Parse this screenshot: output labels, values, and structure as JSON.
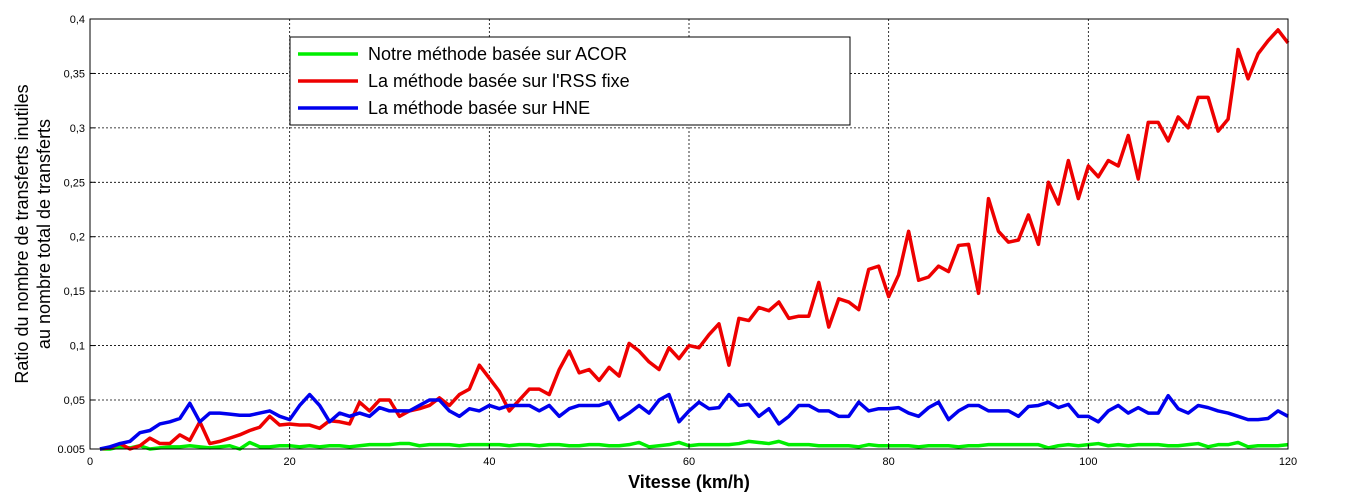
{
  "chart_data": {
    "type": "line",
    "x_label": "Vitesse (km/h)",
    "y_label": [
      "Ratio du nombre de transferts inutiles",
      "au nombre total de transferts"
    ],
    "xlim": [
      0,
      120
    ],
    "xticks": [
      0,
      20,
      40,
      60,
      80,
      100,
      120
    ],
    "ylim": [
      0.005,
      0.4
    ],
    "yticks": [
      0.005,
      {
        "value": 0.05,
        "label": "0,05"
      },
      {
        "value": 0.1,
        "label": "0,1"
      },
      {
        "value": 0.15,
        "label": "0,15"
      },
      {
        "value": 0.2,
        "label": "0,2"
      },
      {
        "value": 0.25,
        "label": "0,25"
      },
      {
        "value": 0.3,
        "label": "0,3"
      },
      {
        "value": 0.35,
        "label": "0,35"
      },
      {
        "value": 0.4,
        "label": "0,4"
      }
    ],
    "grid": true,
    "legend": "upper-left",
    "x": [
      1,
      2,
      3,
      4,
      5,
      6,
      7,
      8,
      9,
      10,
      11,
      12,
      13,
      14,
      15,
      16,
      17,
      18,
      19,
      20,
      21,
      22,
      23,
      24,
      25,
      26,
      27,
      28,
      29,
      30,
      31,
      32,
      33,
      34,
      35,
      36,
      37,
      38,
      39,
      40,
      41,
      42,
      43,
      44,
      45,
      46,
      47,
      48,
      49,
      50,
      51,
      52,
      53,
      54,
      55,
      56,
      57,
      58,
      59,
      60,
      61,
      62,
      63,
      64,
      65,
      66,
      67,
      68,
      69,
      70,
      71,
      72,
      73,
      74,
      75,
      76,
      77,
      78,
      79,
      80,
      81,
      82,
      83,
      84,
      85,
      86,
      87,
      88,
      89,
      90,
      91,
      92,
      93,
      94,
      95,
      96,
      97,
      98,
      99,
      100,
      101,
      102,
      103,
      104,
      105,
      106,
      107,
      108,
      109,
      110,
      111,
      112,
      113,
      114,
      115,
      116,
      117,
      118,
      119,
      120
    ],
    "series": [
      {
        "name": "Notre méthode basée sur ACOR",
        "color": "#00ee00",
        "values": [
          0.005,
          0.005,
          0.007,
          0.006,
          0.008,
          0.005,
          0.006,
          0.007,
          0.007,
          0.008,
          0.007,
          0.006,
          0.007,
          0.008,
          0.005,
          0.011,
          0.007,
          0.007,
          0.008,
          0.008,
          0.007,
          0.008,
          0.007,
          0.008,
          0.008,
          0.007,
          0.008,
          0.009,
          0.009,
          0.009,
          0.01,
          0.01,
          0.008,
          0.009,
          0.009,
          0.009,
          0.008,
          0.009,
          0.009,
          0.009,
          0.009,
          0.008,
          0.009,
          0.009,
          0.008,
          0.009,
          0.009,
          0.008,
          0.008,
          0.009,
          0.009,
          0.008,
          0.008,
          0.009,
          0.011,
          0.007,
          0.008,
          0.009,
          0.011,
          0.008,
          0.009,
          0.009,
          0.009,
          0.009,
          0.01,
          0.012,
          0.011,
          0.01,
          0.012,
          0.009,
          0.009,
          0.009,
          0.008,
          0.008,
          0.008,
          0.008,
          0.007,
          0.009,
          0.008,
          0.008,
          0.008,
          0.008,
          0.007,
          0.008,
          0.008,
          0.008,
          0.007,
          0.008,
          0.008,
          0.009,
          0.009,
          0.009,
          0.009,
          0.009,
          0.009,
          0.006,
          0.008,
          0.009,
          0.008,
          0.009,
          0.01,
          0.008,
          0.009,
          0.008,
          0.009,
          0.009,
          0.009,
          0.008,
          0.008,
          0.009,
          0.01,
          0.007,
          0.009,
          0.009,
          0.011,
          0.007,
          0.008,
          0.008,
          0.008,
          0.009
        ]
      },
      {
        "name": "La méthode basée sur l'RSS fixe",
        "color": "#ee0000",
        "values": [
          0.005,
          0.006,
          0.01,
          0.005,
          0.008,
          0.015,
          0.01,
          0.01,
          0.018,
          0.013,
          0.03,
          0.01,
          0.012,
          0.015,
          0.018,
          0.022,
          0.025,
          0.035,
          0.027,
          0.028,
          0.027,
          0.027,
          0.024,
          0.031,
          0.03,
          0.028,
          0.048,
          0.04,
          0.05,
          0.05,
          0.035,
          0.04,
          0.042,
          0.045,
          0.052,
          0.045,
          0.055,
          0.06,
          0.082,
          0.07,
          0.058,
          0.04,
          0.05,
          0.06,
          0.06,
          0.055,
          0.078,
          0.095,
          0.075,
          0.078,
          0.068,
          0.08,
          0.072,
          0.102,
          0.095,
          0.085,
          0.078,
          0.098,
          0.088,
          0.1,
          0.098,
          0.11,
          0.12,
          0.082,
          0.125,
          0.123,
          0.135,
          0.132,
          0.14,
          0.125,
          0.127,
          0.127,
          0.158,
          0.117,
          0.143,
          0.14,
          0.133,
          0.17,
          0.173,
          0.145,
          0.165,
          0.205,
          0.16,
          0.163,
          0.173,
          0.168,
          0.192,
          0.193,
          0.148,
          0.235,
          0.205,
          0.195,
          0.197,
          0.22,
          0.193,
          0.25,
          0.23,
          0.27,
          0.235,
          0.265,
          0.255,
          0.27,
          0.265,
          0.293,
          0.253,
          0.305,
          0.305,
          0.288,
          0.31,
          0.3,
          0.328,
          0.328,
          0.297,
          0.308,
          0.372,
          0.345,
          0.368,
          0.38,
          0.39,
          0.378
        ]
      },
      {
        "name": "La méthode basée sur HNE",
        "color": "#0000ee",
        "values": [
          0.005,
          0.007,
          0.01,
          0.012,
          0.02,
          0.022,
          0.028,
          0.03,
          0.033,
          0.047,
          0.03,
          0.038,
          0.038,
          0.037,
          0.036,
          0.036,
          0.038,
          0.04,
          0.035,
          0.032,
          0.045,
          0.055,
          0.045,
          0.03,
          0.038,
          0.035,
          0.038,
          0.035,
          0.043,
          0.04,
          0.04,
          0.04,
          0.045,
          0.05,
          0.05,
          0.04,
          0.035,
          0.042,
          0.04,
          0.045,
          0.042,
          0.045,
          0.045,
          0.045,
          0.04,
          0.045,
          0.035,
          0.042,
          0.045,
          0.045,
          0.045,
          0.048,
          0.032,
          0.038,
          0.045,
          0.038,
          0.05,
          0.055,
          0.03,
          0.04,
          0.048,
          0.042,
          0.043,
          0.055,
          0.045,
          0.046,
          0.035,
          0.042,
          0.028,
          0.035,
          0.045,
          0.045,
          0.04,
          0.04,
          0.035,
          0.035,
          0.048,
          0.04,
          0.042,
          0.042,
          0.043,
          0.038,
          0.035,
          0.043,
          0.048,
          0.032,
          0.04,
          0.045,
          0.045,
          0.04,
          0.04,
          0.04,
          0.035,
          0.044,
          0.045,
          0.048,
          0.043,
          0.046,
          0.035,
          0.035,
          0.03,
          0.04,
          0.045,
          0.038,
          0.043,
          0.038,
          0.038,
          0.054,
          0.042,
          0.038,
          0.045,
          0.043,
          0.04,
          0.038,
          0.035,
          0.032,
          0.032,
          0.033,
          0.04,
          0.035
        ]
      }
    ]
  }
}
